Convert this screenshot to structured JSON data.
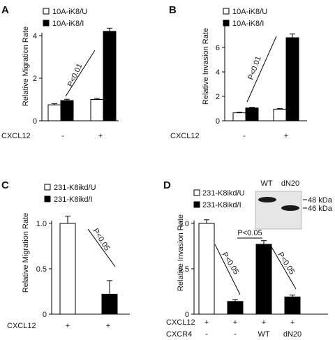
{
  "colors": {
    "white_bar": "#ffffff",
    "black_bar": "#000000",
    "axis": "#000000",
    "blot_bg": "#e6e6e6",
    "band": "#1a1a1a"
  },
  "chart_data": [
    {
      "panel": "A",
      "type": "bar",
      "ylabel": "Relative Migration Rate",
      "ylim": [
        0,
        4
      ],
      "yticks": [
        "0",
        "2",
        "4"
      ],
      "series": [
        {
          "name": "10A-iK8/U",
          "fill": "white"
        },
        {
          "name": "10A-iK8/I",
          "fill": "black"
        }
      ],
      "groups": [
        {
          "values": [
            0.75,
            0.95
          ],
          "errors": [
            0.05,
            0.06
          ]
        },
        {
          "values": [
            1.0,
            4.2
          ],
          "errors": [
            0.05,
            0.15
          ]
        }
      ],
      "conditions": [
        {
          "label": "CXCL12",
          "values": [
            "-",
            "+"
          ]
        }
      ],
      "annotations": [
        {
          "text": "P<0.01"
        }
      ]
    },
    {
      "panel": "B",
      "type": "bar",
      "ylabel": "Relative Invasion Rate",
      "ylim": [
        0,
        8
      ],
      "yticks": [
        "0",
        "2",
        "4",
        "6"
      ],
      "series": [
        {
          "name": "10A-iK8/U",
          "fill": "white"
        },
        {
          "name": "10A-iK8/I",
          "fill": "black"
        }
      ],
      "groups": [
        {
          "values": [
            0.65,
            1.05
          ],
          "errors": [
            0.05,
            0.05
          ]
        },
        {
          "values": [
            0.95,
            6.8
          ],
          "errors": [
            0.05,
            0.3
          ]
        }
      ],
      "conditions": [
        {
          "label": "CXCL12",
          "values": [
            "-",
            "+"
          ]
        }
      ],
      "annotations": [
        {
          "text": "P<0.01"
        }
      ]
    },
    {
      "panel": "C",
      "type": "bar",
      "ylabel": "Relative Migration Rate",
      "ylim": [
        0,
        1.0
      ],
      "yticks": [
        "0",
        "0.5",
        "1.0"
      ],
      "series": [
        {
          "name": "231-K8ikd/U",
          "fill": "white"
        },
        {
          "name": "231-K8ikd/I",
          "fill": "black"
        }
      ],
      "bars": [
        {
          "value": 1.0,
          "error": 0.08,
          "fill": "white"
        },
        {
          "value": 0.22,
          "error": 0.15,
          "fill": "black"
        }
      ],
      "conditions": [
        {
          "label": "CXCL12",
          "values": [
            "+",
            "+"
          ]
        }
      ],
      "annotations": [
        {
          "text": "P<0.05"
        }
      ]
    },
    {
      "panel": "D",
      "type": "bar",
      "ylabel": "Relative Invasion Rate",
      "ylim": [
        0,
        1.0
      ],
      "yticks": [
        "0",
        "0.5",
        "1.0"
      ],
      "series": [
        {
          "name": "231-K8ikd/U",
          "fill": "white"
        },
        {
          "name": "231-K8ikd/I",
          "fill": "black"
        }
      ],
      "bars": [
        {
          "value": 1.0,
          "error": 0.04,
          "fill": "white"
        },
        {
          "value": 0.14,
          "error": 0.02,
          "fill": "black"
        },
        {
          "value": 0.77,
          "error": 0.04,
          "fill": "black"
        },
        {
          "value": 0.19,
          "error": 0.02,
          "fill": "black"
        }
      ],
      "conditions": [
        {
          "label": "CXCL12",
          "values": [
            "+",
            "+",
            "+",
            "+"
          ]
        },
        {
          "label": "CXCR4",
          "values": [
            "-",
            "-",
            "WT",
            "dN20"
          ]
        }
      ],
      "annotations": [
        {
          "text": "P<0.05"
        },
        {
          "text": "P<0.05"
        },
        {
          "text": "P<0.05"
        }
      ],
      "blot": {
        "lanes": [
          "WT",
          "dN20"
        ],
        "markers": [
          "48 kDa",
          "46 kDa"
        ]
      }
    }
  ]
}
